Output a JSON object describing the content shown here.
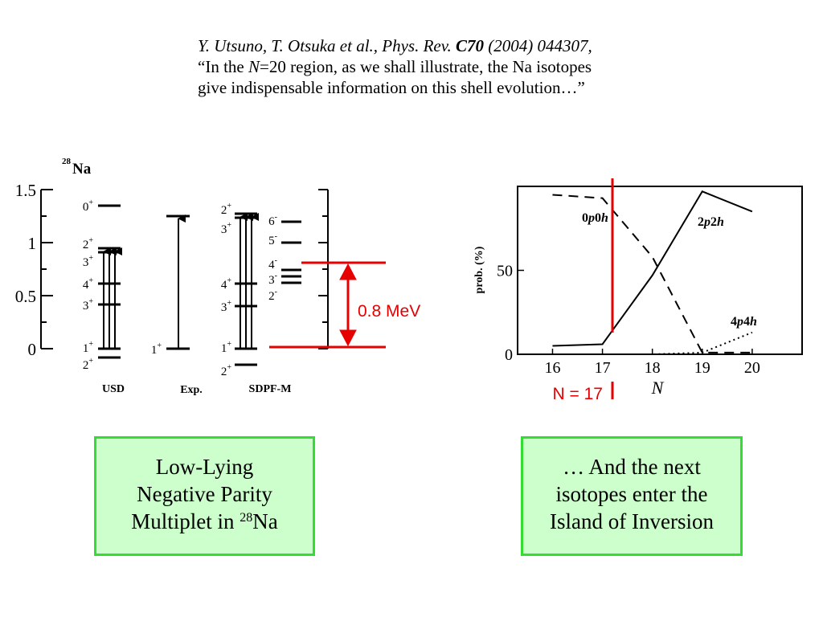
{
  "citation": {
    "ref_prefix": "Y. Utsuno, T. Otsuka et al., Phys. Rev.",
    "ref_journal": "C70",
    "ref_suffix": "(2004) 044307,",
    "quote_open": "“In the ",
    "quote_N": "N",
    "quote_mid": "=20 region, as we shall illustrate, the Na isotopes",
    "quote_line2": "give indispensable information on this shell evolution…”"
  },
  "level_scheme": {
    "nucleus_mass": "28",
    "nucleus_symbol": "Na",
    "y_ticks": [
      "1.5",
      "1",
      "0.5",
      "0"
    ],
    "columns": [
      "USD",
      "Exp.",
      "SDPF-M"
    ],
    "usd_spins": [
      {
        "j": "0",
        "p": "+"
      },
      {
        "j": "2",
        "p": "+"
      },
      {
        "j": "3",
        "p": "+"
      },
      {
        "j": "4",
        "p": "+"
      },
      {
        "j": "3",
        "p": "+"
      },
      {
        "j": "1",
        "p": "+"
      },
      {
        "j": "2",
        "p": "+"
      }
    ],
    "exp_spins": [
      {
        "j": "1",
        "p": "+"
      }
    ],
    "sdpfm_spins": [
      {
        "j": "2",
        "p": "+"
      },
      {
        "j": "3",
        "p": "+"
      },
      {
        "j": "4",
        "p": "+"
      },
      {
        "j": "3",
        "p": "+"
      },
      {
        "j": "1",
        "p": "+"
      },
      {
        "j": "2",
        "p": "+"
      }
    ],
    "negative_spins": [
      {
        "j": "6",
        "p": "-"
      },
      {
        "j": "5",
        "p": "-"
      },
      {
        "j": "4",
        "p": "-"
      },
      {
        "j": "3",
        "p": "-"
      },
      {
        "j": "2",
        "p": "-"
      }
    ],
    "gap_label": "0.8 MeV",
    "accent_color": "#e60000"
  },
  "chart_data": {
    "type": "line",
    "ylabel": "prob. (%)",
    "xlabel": "N",
    "x": [
      16,
      17,
      18,
      19,
      20
    ],
    "xlim": [
      15.3,
      21
    ],
    "ylim": [
      0,
      100
    ],
    "yticks": [
      "50",
      "0"
    ],
    "series": [
      {
        "name": "0p0h",
        "style": "dashed",
        "x": [
          16,
          17,
          18,
          19,
          20
        ],
        "y": [
          95,
          93,
          58,
          1,
          1
        ]
      },
      {
        "name": "2p2h",
        "style": "solid",
        "x": [
          16,
          17,
          18,
          19,
          20
        ],
        "y": [
          5,
          6,
          47,
          97,
          85
        ]
      },
      {
        "name": "4p4h",
        "style": "dotted",
        "x": [
          16,
          17,
          18,
          19,
          20
        ],
        "y": [
          0,
          0,
          0,
          1,
          13
        ]
      }
    ],
    "marker_label": "N = 17",
    "marker_color": "#e60000"
  },
  "boxes": {
    "left_line1": "Low-Lying",
    "left_line2": "Negative Parity",
    "left_line3_prefix": "Multiplet in ",
    "left_sup": "28",
    "left_line3_suffix": "Na",
    "right_line1": "… And the next",
    "right_line2": "isotopes enter the",
    "right_line3": "Island of Inversion",
    "fill_color": "#ccffcc",
    "border_color": "#33dd33"
  }
}
